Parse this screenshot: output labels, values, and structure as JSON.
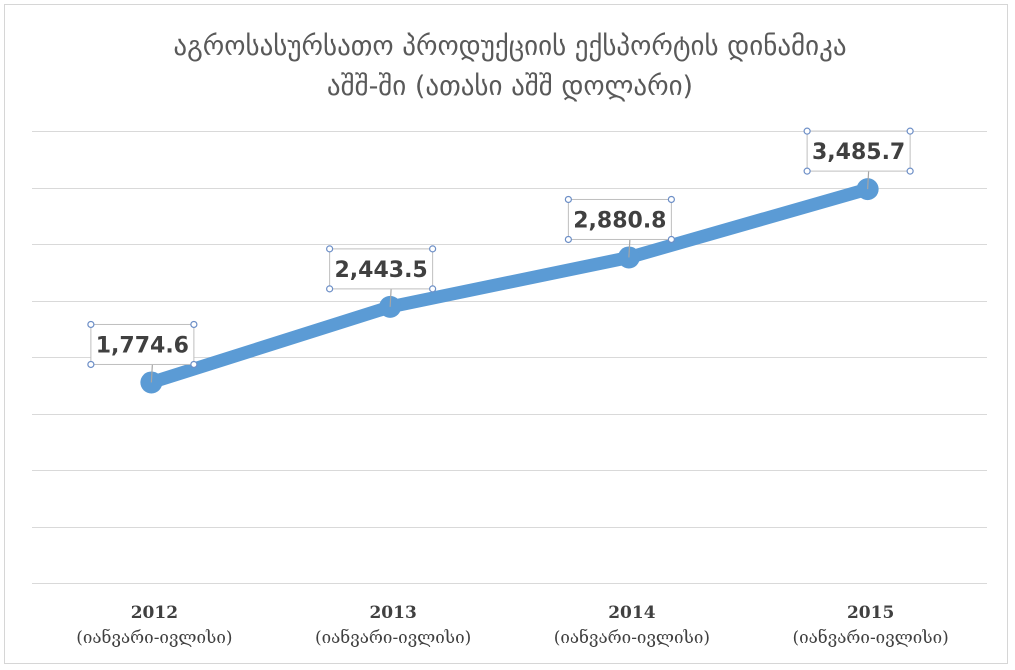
{
  "chart_data": {
    "type": "line",
    "title": "აგროსასურსათო პროდუქციის ექსპორტის დინამიკა",
    "subtitle": "აშშ-ში  (ათასი აშშ დოლარი)",
    "categories": [
      {
        "year": "2012",
        "period": "(იანვარი-ივლისი)"
      },
      {
        "year": "2013",
        "period": "(იანვარი-ივლისი)"
      },
      {
        "year": "2014",
        "period": "(იანვარი-ივლისი)"
      },
      {
        "year": "2015",
        "period": "(იანვარი-ივლისი)"
      }
    ],
    "series": [
      {
        "values": [
          1774.6,
          2443.5,
          2880.8,
          3485.7
        ],
        "data_labels": [
          "1,774.6",
          "2,443.5",
          "2,880.8",
          "3,485.7"
        ]
      }
    ],
    "ylim": [
      0,
      4000
    ],
    "grid": true,
    "legend": "none",
    "line_color": "#5b9bd5"
  }
}
